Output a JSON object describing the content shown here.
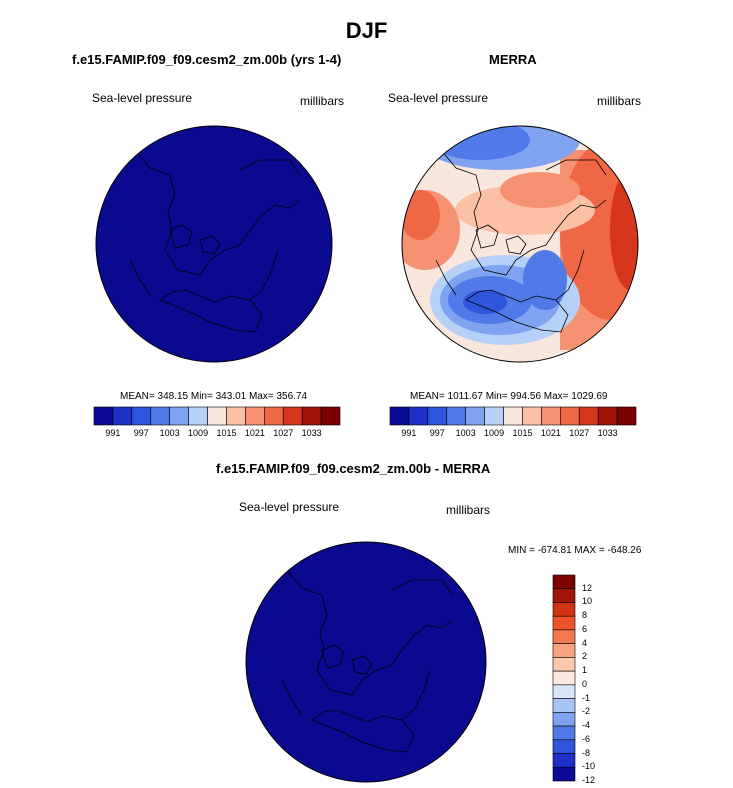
{
  "title": "DJF",
  "colors": {
    "palette_11": [
      "#0a0a96",
      "#1f2fc8",
      "#2f55dc",
      "#4f7ae8",
      "#7fa3f0",
      "#b6d0f7",
      "#f9e6dc",
      "#fbc0a5",
      "#f69272",
      "#ef6745",
      "#d6361d",
      "#a11308",
      "#780000"
    ],
    "palette_diff": [
      "#0a0a96",
      "#1f2fc8",
      "#2f55dc",
      "#4f7ae8",
      "#7fa3f0",
      "#a6c4f5",
      "#d8e6fa",
      "#fde9de",
      "#fbc8ae",
      "#f8a47f",
      "#f37a50",
      "#ee5228",
      "#d23314",
      "#a01709",
      "#7c0000"
    ],
    "model_fill": "#0a0a90"
  },
  "top_left": {
    "title": "f.e15.FAMIP.f09_f09.cesm2_zm.00b (yrs 1-4)",
    "variable": "Sea-level pressure",
    "units": "millibars",
    "stats": "MEAN= 348.15  Min= 343.01  Max= 356.74",
    "colorbar_labels": [
      "991",
      "997",
      "1003",
      "1009",
      "1015",
      "1021",
      "1027",
      "1033"
    ]
  },
  "top_right": {
    "title": "MERRA",
    "variable": "Sea-level pressure",
    "units": "millibars",
    "stats": "MEAN= 1011.67  Min= 994.56  Max= 1029.69",
    "colorbar_labels": [
      "991",
      "997",
      "1003",
      "1009",
      "1015",
      "1021",
      "1027",
      "1033"
    ]
  },
  "bottom": {
    "title": "f.e15.FAMIP.f09_f09.cesm2_zm.00b - MERRA",
    "variable": "Sea-level pressure",
    "units": "millibars",
    "stats": "MIN = -674.81  MAX = -648.26",
    "colorbar_labels": [
      "12",
      "10",
      "8",
      "6",
      "4",
      "2",
      "1",
      "0",
      "-1",
      "-2",
      "-4",
      "-6",
      "-8",
      "-10",
      "-12"
    ]
  }
}
